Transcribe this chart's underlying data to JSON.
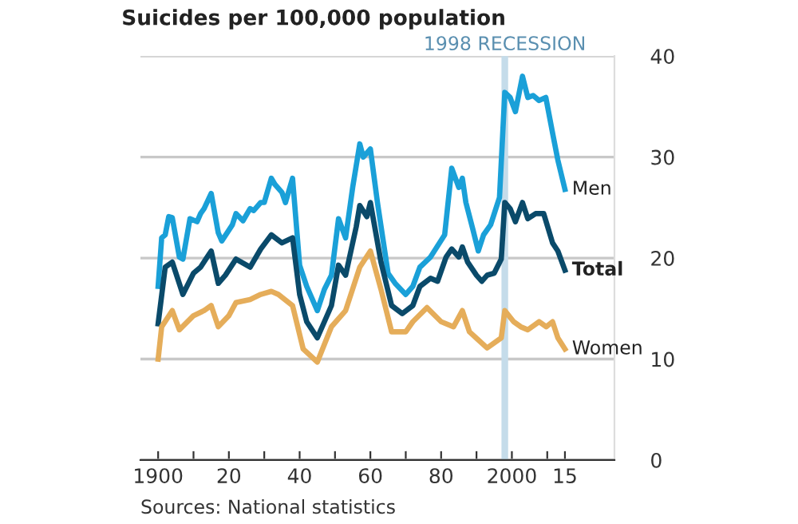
{
  "chart_data": {
    "type": "line",
    "title": "Suicides per 100,000 population",
    "annotations": [
      "Sources: National statistics"
    ],
    "xlim": [
      1895,
      2029
    ],
    "xticks": [
      1900,
      {
        "value": 1910,
        "label": null
      },
      {
        "value": 1920,
        "label": "20"
      },
      {
        "value": 1930,
        "label": null
      },
      {
        "value": 1940,
        "label": "40"
      },
      {
        "value": 1950,
        "label": null
      },
      {
        "value": 1960,
        "label": "60"
      },
      {
        "value": 1970,
        "label": null
      },
      {
        "value": 1980,
        "label": "80"
      },
      {
        "value": 1990,
        "label": null
      },
      2000,
      {
        "value": 2010,
        "label": null
      },
      {
        "value": 2015,
        "label": "15"
      }
    ],
    "ylim": [
      0,
      40
    ],
    "yticks": [
      0,
      10,
      20,
      30,
      40
    ],
    "grid": "y",
    "legend": false,
    "marker": "none",
    "line_style": "solid",
    "ref_lines": [
      {
        "axis": "x",
        "value": 1998,
        "label": "1998 RECESSION",
        "color": "#c5dcea"
      }
    ],
    "series": [
      {
        "name": "Men",
        "color": "#1aa0d8",
        "x": [
          1900,
          1901,
          1902,
          1903,
          1904,
          1906,
          1907,
          1909,
          1911,
          1912,
          1913,
          1915,
          1917,
          1918,
          1921,
          1922,
          1924,
          1926,
          1927,
          1929,
          1930,
          1932,
          1933,
          1935,
          1936,
          1938,
          1940,
          1942,
          1945,
          1947,
          1949,
          1951,
          1953,
          1955,
          1957,
          1958,
          1960,
          1962,
          1965,
          1967,
          1970,
          1972,
          1974,
          1977,
          1981,
          1983,
          1985,
          1986,
          1987,
          1989,
          1990.5,
          1992,
          1994,
          1996.5,
          1998,
          1999.5,
          2001,
          2003,
          2004.5,
          2006,
          2007.7,
          2009.6,
          2011.5,
          2013,
          2015
        ],
        "values": [
          17.2,
          22.0,
          22.3,
          24.1,
          24.0,
          20.1,
          19.9,
          23.9,
          23.6,
          24.4,
          24.9,
          26.4,
          22.5,
          21.7,
          23.3,
          24.4,
          23.7,
          24.9,
          24.7,
          25.5,
          25.5,
          27.9,
          27.3,
          26.5,
          25.5,
          27.9,
          19.3,
          17.2,
          14.8,
          16.9,
          18.3,
          23.9,
          22.0,
          27.0,
          31.3,
          30.0,
          30.8,
          25.5,
          18.5,
          17.5,
          16.4,
          17.2,
          19.1,
          20.1,
          22.3,
          28.9,
          27.0,
          27.9,
          25.5,
          22.8,
          20.7,
          22.3,
          23.3,
          26.0,
          36.4,
          35.9,
          34.5,
          38.0,
          35.9,
          36.1,
          35.6,
          35.9,
          32.4,
          29.7,
          26.8
        ]
      },
      {
        "name": "Total",
        "color": "#0a4a6a",
        "x": [
          1900,
          1902,
          1904,
          1907,
          1910,
          1912,
          1915,
          1917,
          1919,
          1922,
          1926,
          1929,
          1932,
          1935,
          1938,
          1940,
          1942,
          1945,
          1949,
          1951,
          1953,
          1956,
          1957,
          1959,
          1960,
          1963,
          1966,
          1969,
          1972,
          1974,
          1977,
          1979,
          1981.4,
          1983,
          1985,
          1986,
          1987.5,
          1990,
          1991.5,
          1993,
          1995,
          1997,
          1998,
          1999.5,
          2001,
          2003,
          2004.5,
          2006.7,
          2009,
          2011.5,
          2013,
          2015
        ],
        "values": [
          13.5,
          19.1,
          19.6,
          16.4,
          18.5,
          19.1,
          20.7,
          17.5,
          18.3,
          19.9,
          19.1,
          20.9,
          22.3,
          21.5,
          22.0,
          16.4,
          13.7,
          12.1,
          15.3,
          19.3,
          18.3,
          23.1,
          25.2,
          24.1,
          25.5,
          19.6,
          15.3,
          14.5,
          15.3,
          17.2,
          18.0,
          17.7,
          20.1,
          20.9,
          20.1,
          21.1,
          19.6,
          18.3,
          17.7,
          18.3,
          18.5,
          19.9,
          25.5,
          24.9,
          23.6,
          25.5,
          23.9,
          24.4,
          24.4,
          21.5,
          20.7,
          18.8
        ]
      },
      {
        "name": "Women",
        "color": "#e5ad5a",
        "x": [
          1900,
          1901,
          1904,
          1906,
          1910,
          1913,
          1915,
          1917,
          1920,
          1922,
          1926,
          1929,
          1932,
          1934,
          1938,
          1941,
          1945,
          1949,
          1953,
          1957,
          1960,
          1963,
          1966,
          1970,
          1972,
          1976,
          1980,
          1983.5,
          1986,
          1988,
          1990.5,
          1993,
          1997,
          1998,
          2000.5,
          2002.5,
          2004.5,
          2007.7,
          2009.7,
          2011.5,
          2013,
          2015
        ],
        "values": [
          10.0,
          13.2,
          14.8,
          12.9,
          14.3,
          14.8,
          15.3,
          13.2,
          14.3,
          15.6,
          15.9,
          16.4,
          16.7,
          16.4,
          15.3,
          11.0,
          9.7,
          13.2,
          14.8,
          19.1,
          20.7,
          16.9,
          12.7,
          12.7,
          13.7,
          15.1,
          13.7,
          13.2,
          14.8,
          12.7,
          11.9,
          11.1,
          12.1,
          14.8,
          13.7,
          13.2,
          12.9,
          13.7,
          13.2,
          13.7,
          12.1,
          11.0
        ]
      }
    ]
  }
}
